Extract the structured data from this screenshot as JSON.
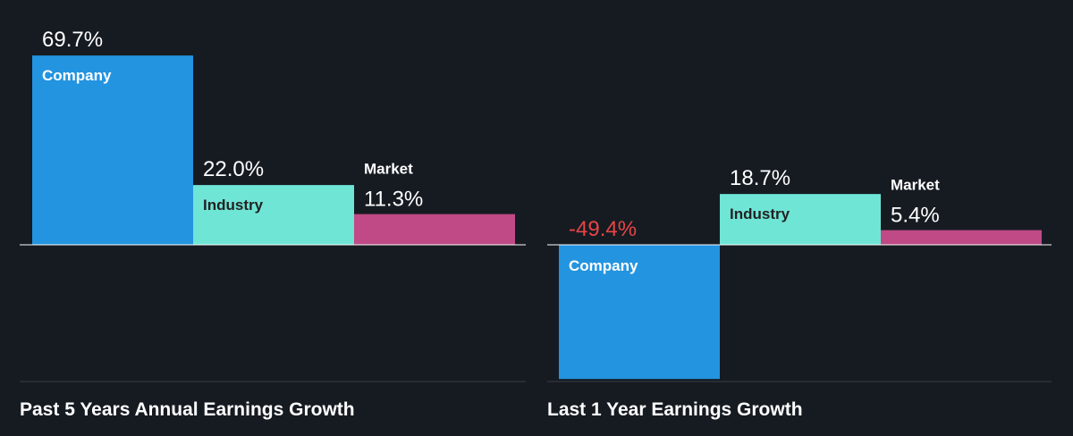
{
  "colors": {
    "background": "#161b22",
    "company": "#2394e0",
    "industry": "#6fe5d6",
    "market": "#bf4a86",
    "negative_value": "#e64545",
    "text": "#ffffff",
    "label_on_light": "#222222"
  },
  "chart_data": [
    {
      "type": "bar",
      "title": "Past 5 Years Annual Earnings Growth",
      "categories": [
        "Company",
        "Industry",
        "Market"
      ],
      "values": [
        69.7,
        22.0,
        11.3
      ],
      "value_labels": [
        "69.7%",
        "22.0%",
        "11.3%"
      ],
      "unit": "%",
      "ylim": [
        -50,
        70
      ]
    },
    {
      "type": "bar",
      "title": "Last 1 Year Earnings Growth",
      "categories": [
        "Company",
        "Industry",
        "Market"
      ],
      "values": [
        -49.4,
        18.7,
        5.4
      ],
      "value_labels": [
        "-49.4%",
        "18.7%",
        "5.4%"
      ],
      "unit": "%",
      "ylim": [
        -50,
        70
      ]
    }
  ]
}
